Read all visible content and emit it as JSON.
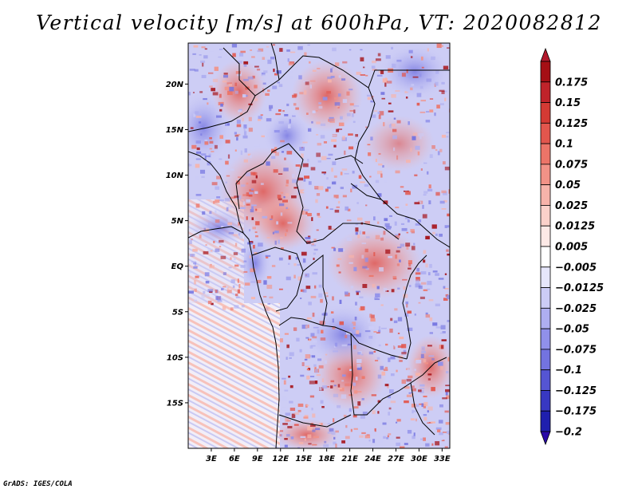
{
  "title": "Vertical velocity [m/s] at 600hPa, VT: 2020082812",
  "credit": "GrADS: IGES/COLA",
  "chart_data": {
    "type": "heatmap",
    "variable": "Vertical velocity",
    "units": "m/s",
    "level": "600hPa",
    "valid_time": "2020082812",
    "lon_range": [
      0,
      34
    ],
    "lat_range": [
      -20,
      24.5
    ],
    "lon_ticks": [
      {
        "value": 3,
        "label": "3E"
      },
      {
        "value": 6,
        "label": "6E"
      },
      {
        "value": 9,
        "label": "9E"
      },
      {
        "value": 12,
        "label": "12E"
      },
      {
        "value": 15,
        "label": "15E"
      },
      {
        "value": 18,
        "label": "18E"
      },
      {
        "value": 21,
        "label": "21E"
      },
      {
        "value": 24,
        "label": "24E"
      },
      {
        "value": 27,
        "label": "27E"
      },
      {
        "value": 30,
        "label": "30E"
      },
      {
        "value": 33,
        "label": "33E"
      }
    ],
    "lat_ticks": [
      {
        "value": 20,
        "label": "20N"
      },
      {
        "value": 15,
        "label": "15N"
      },
      {
        "value": 10,
        "label": "10N"
      },
      {
        "value": 5,
        "label": "5N"
      },
      {
        "value": 0,
        "label": "EQ"
      },
      {
        "value": -5,
        "label": "5S"
      },
      {
        "value": -10,
        "label": "10S"
      },
      {
        "value": -15,
        "label": "15S"
      }
    ],
    "colorbar": {
      "orientation": "vertical",
      "placement": "right",
      "levels": [
        {
          "label": "0.175",
          "value": 0.175,
          "color": "#a50f15"
        },
        {
          "label": "0.15",
          "value": 0.15,
          "color": "#c0232a"
        },
        {
          "label": "0.125",
          "value": 0.125,
          "color": "#d43a34"
        },
        {
          "label": "0.1",
          "value": 0.1,
          "color": "#e2564d"
        },
        {
          "label": "0.075",
          "value": 0.075,
          "color": "#ec7468"
        },
        {
          "label": "0.05",
          "value": 0.05,
          "color": "#f29287"
        },
        {
          "label": "0.025",
          "value": 0.025,
          "color": "#f7b3aa"
        },
        {
          "label": "0.0125",
          "value": 0.0125,
          "color": "#fbd1ca"
        },
        {
          "label": "0.005",
          "value": 0.005,
          "color": "#fde9e6"
        },
        {
          "label": "−0.005",
          "value": -0.005,
          "color": "#ffffff"
        },
        {
          "label": "−0.0125",
          "value": -0.0125,
          "color": "#e6e6fb"
        },
        {
          "label": "−0.025",
          "value": -0.025,
          "color": "#ccccf6"
        },
        {
          "label": "−0.05",
          "value": -0.05,
          "color": "#aeaef0"
        },
        {
          "label": "−0.075",
          "value": -0.075,
          "color": "#9090ea"
        },
        {
          "label": "−0.1",
          "value": -0.1,
          "color": "#7373e0"
        },
        {
          "label": "−0.125",
          "value": -0.125,
          "color": "#5555d3"
        },
        {
          "label": "−0.175",
          "value": -0.175,
          "color": "#3838c2"
        },
        {
          "label": "−0.2",
          "value": -0.2,
          "color": "#1f1fae"
        }
      ],
      "top_color": "#b2182b",
      "bottom_color": "#2a0aa8"
    }
  }
}
